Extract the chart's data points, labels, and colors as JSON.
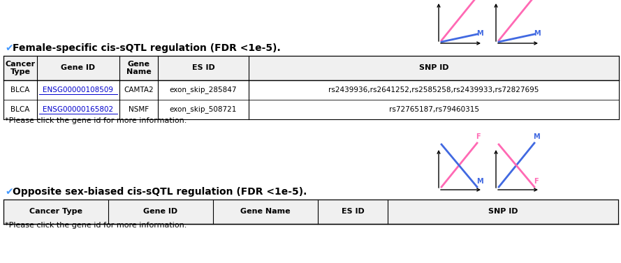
{
  "title1": "Female-specific cis-sQTL regulation (FDR <1e-5).",
  "title2": "Opposite sex-biased cis-sQTL regulation (FDR <1e-5).",
  "note": "*Please click the gene id for more information.",
  "table1_headers": [
    "Cancer\nType",
    "Gene ID",
    "Gene\nName",
    "ES ID",
    "SNP ID"
  ],
  "table1_rows": [
    [
      "BLCA",
      "ENSG00000108509",
      "CAMTA2",
      "exon_skip_285847",
      "rs2439936,rs2641252,rs2585258,rs2439933,rs72827695"
    ],
    [
      "BLCA",
      "ENSG00000165802",
      "NSMF",
      "exon_skip_508721",
      "rs72765187,rs79460315"
    ]
  ],
  "table2_headers": [
    "Cancer Type",
    "Gene ID",
    "Gene Name",
    "ES ID",
    "SNP ID"
  ],
  "table2_rows": [],
  "link_color": "#0000cc",
  "title_color": "#000000",
  "check_color": "#4499ff",
  "female_color": "#ff69b4",
  "male_color": "#4169e1",
  "background": "#ffffff"
}
